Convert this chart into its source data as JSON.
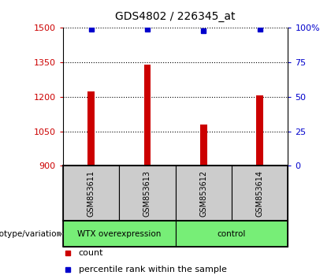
{
  "title": "GDS4802 / 226345_at",
  "samples": [
    "GSM853611",
    "GSM853613",
    "GSM853612",
    "GSM853614"
  ],
  "counts": [
    1225,
    1340,
    1080,
    1205
  ],
  "percentile_ranks": [
    99,
    99,
    98,
    99
  ],
  "ylim_left": [
    900,
    1500
  ],
  "ylim_right": [
    0,
    100
  ],
  "yticks_left": [
    900,
    1050,
    1200,
    1350,
    1500
  ],
  "yticks_right": [
    0,
    25,
    50,
    75,
    100
  ],
  "yticklabels_right": [
    "0",
    "25",
    "50",
    "75",
    "100%"
  ],
  "bar_color": "#cc0000",
  "dot_color": "#0000cc",
  "groups": [
    {
      "label": "WTX overexpression",
      "indices": [
        0,
        1
      ],
      "color": "#77ee77"
    },
    {
      "label": "control",
      "indices": [
        2,
        3
      ],
      "color": "#77ee77"
    }
  ],
  "group_label_prefix": "genotype/variation",
  "legend_count_label": "count",
  "legend_pct_label": "percentile rank within the sample",
  "bar_width": 0.12,
  "plot_bg": "#ffffff",
  "sample_box_color": "#cccccc",
  "left_axis_color": "#cc0000",
  "right_axis_color": "#0000cc",
  "title_fontsize": 10,
  "tick_fontsize": 8,
  "label_fontsize": 8
}
